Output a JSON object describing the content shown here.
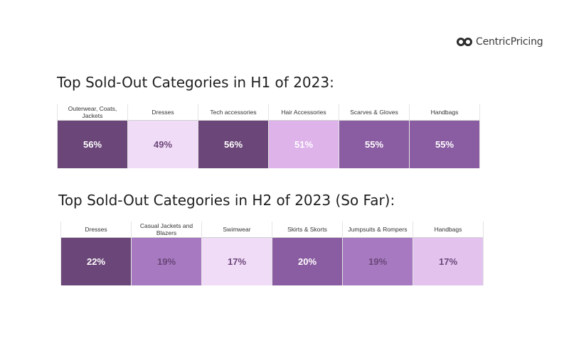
{
  "logo": {
    "text": "CentricPricing",
    "icon": "double-circle-logo-icon"
  },
  "chart_data": [
    {
      "type": "table",
      "title": "Top Sold-Out Categories in H1 of 2023:",
      "categories": [
        "Outerwear, Coats, Jackets",
        "Dresses",
        "Tech accessories",
        "Hair Accessories",
        "Scarves & Gloves",
        "Handbags"
      ],
      "values": [
        56,
        49,
        56,
        51,
        55,
        55
      ],
      "labels": [
        "56%",
        "49%",
        "56%",
        "51%",
        "55%",
        "55%"
      ],
      "cell_colors": [
        "#6b4678",
        "#f0dcf7",
        "#6b4678",
        "#ddb3ea",
        "#8a5ca1",
        "#8a5ca1"
      ],
      "text_colors": [
        "#ffffff",
        "#6b4678",
        "#ffffff",
        "#ffffff",
        "#ffffff",
        "#ffffff"
      ]
    },
    {
      "type": "table",
      "title": "Top Sold-Out Categories in H2 of 2023 (So Far):",
      "categories": [
        "Dresses",
        "Casual Jackets and Blazers",
        "Swimwear",
        "Skirts & Skorts",
        "Jumpsuits & Rompers",
        "Handbags"
      ],
      "values": [
        22,
        19,
        17,
        20,
        19,
        17
      ],
      "labels": [
        "22%",
        "19%",
        "17%",
        "20%",
        "19%",
        "17%"
      ],
      "cell_colors": [
        "#6b4678",
        "#a679c0",
        "#f0dcf7",
        "#8a5ca1",
        "#a679c0",
        "#e3c3ee"
      ],
      "text_colors": [
        "#ffffff",
        "#6b4678",
        "#6b4678",
        "#ffffff",
        "#6b4678",
        "#6b4678"
      ]
    }
  ]
}
